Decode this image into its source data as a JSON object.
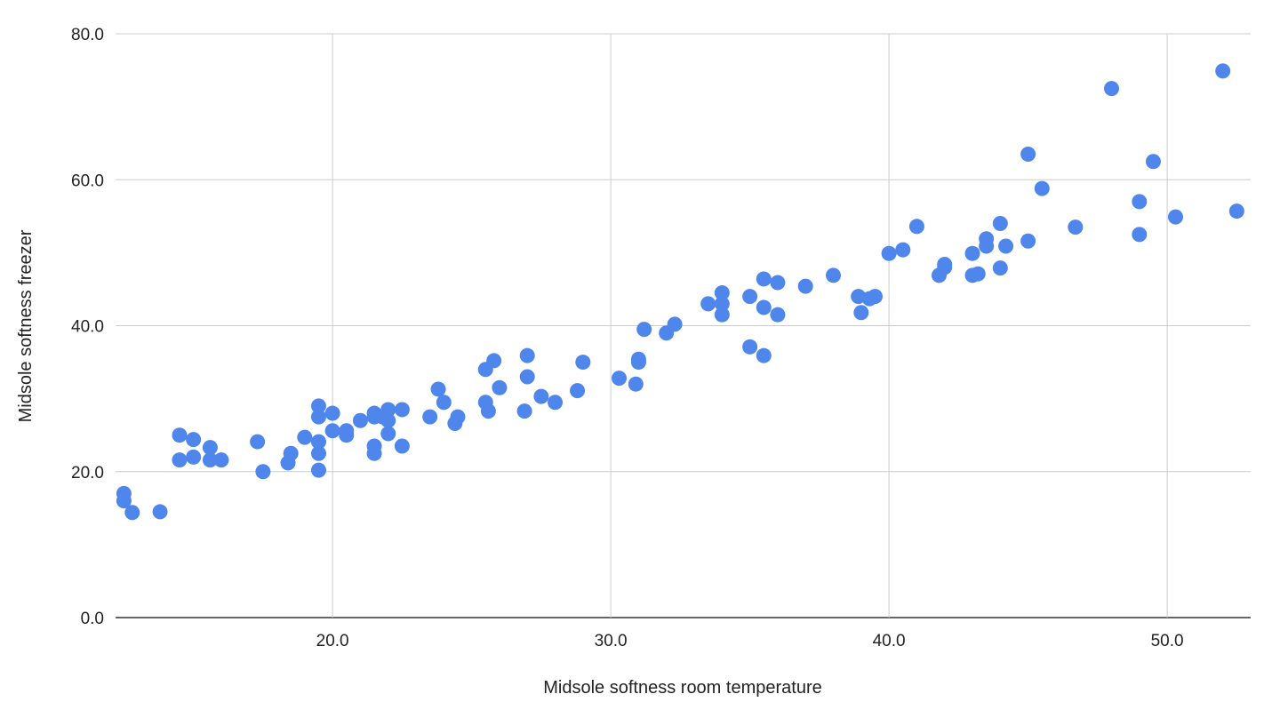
{
  "chart_data": {
    "type": "scatter",
    "title": "",
    "xlabel": "Midsole softness room temperature",
    "ylabel": "Midsole softness freezer",
    "xlim": [
      12.2,
      53.0
    ],
    "ylim": [
      0,
      80
    ],
    "xticks": [
      "20.0",
      "30.0",
      "40.0",
      "50.0"
    ],
    "xtick_values": [
      20,
      30,
      40,
      50
    ],
    "yticks": [
      "0.0",
      "20.0",
      "40.0",
      "60.0",
      "80.0"
    ],
    "ytick_values": [
      0,
      20,
      40,
      60,
      80
    ],
    "grid": true,
    "legend": "none",
    "color": "#4e86ec",
    "points": [
      [
        12.5,
        17.0
      ],
      [
        12.5,
        16.0
      ],
      [
        12.8,
        14.4
      ],
      [
        13.8,
        14.5
      ],
      [
        14.5,
        25.0
      ],
      [
        14.5,
        21.6
      ],
      [
        15.0,
        24.4
      ],
      [
        15.0,
        22.0
      ],
      [
        15.6,
        23.3
      ],
      [
        15.6,
        21.6
      ],
      [
        16.0,
        21.6
      ],
      [
        17.3,
        24.1
      ],
      [
        17.5,
        20.0
      ],
      [
        18.4,
        21.2
      ],
      [
        18.5,
        22.5
      ],
      [
        19.0,
        24.7
      ],
      [
        19.5,
        29.0
      ],
      [
        19.5,
        27.5
      ],
      [
        19.5,
        24.1
      ],
      [
        19.5,
        22.5
      ],
      [
        19.5,
        20.2
      ],
      [
        20.0,
        28.0
      ],
      [
        20.0,
        25.6
      ],
      [
        20.5,
        25.6
      ],
      [
        20.5,
        25.0
      ],
      [
        21.0,
        27.0
      ],
      [
        21.5,
        28.0
      ],
      [
        21.5,
        27.5
      ],
      [
        21.5,
        23.5
      ],
      [
        21.5,
        22.5
      ],
      [
        21.8,
        27.5
      ],
      [
        22.0,
        28.5
      ],
      [
        22.0,
        27.0
      ],
      [
        22.0,
        25.2
      ],
      [
        22.5,
        28.5
      ],
      [
        22.5,
        23.5
      ],
      [
        23.5,
        27.5
      ],
      [
        23.8,
        31.3
      ],
      [
        24.0,
        29.5
      ],
      [
        24.4,
        26.6
      ],
      [
        24.5,
        27.5
      ],
      [
        25.5,
        34.0
      ],
      [
        25.8,
        35.2
      ],
      [
        25.5,
        29.5
      ],
      [
        25.6,
        28.3
      ],
      [
        26.0,
        31.5
      ],
      [
        26.9,
        28.3
      ],
      [
        27.0,
        35.9
      ],
      [
        27.0,
        33.0
      ],
      [
        27.5,
        30.3
      ],
      [
        28.0,
        29.5
      ],
      [
        28.8,
        31.1
      ],
      [
        29.0,
        35.0
      ],
      [
        30.3,
        32.8
      ],
      [
        30.9,
        32.0
      ],
      [
        31.0,
        35.4
      ],
      [
        31.0,
        35.0
      ],
      [
        31.2,
        39.5
      ],
      [
        32.0,
        39.0
      ],
      [
        32.3,
        40.2
      ],
      [
        33.5,
        43.0
      ],
      [
        34.0,
        44.5
      ],
      [
        34.0,
        43.0
      ],
      [
        34.0,
        41.5
      ],
      [
        35.0,
        44.0
      ],
      [
        35.0,
        37.1
      ],
      [
        35.5,
        46.4
      ],
      [
        35.5,
        42.5
      ],
      [
        35.5,
        35.9
      ],
      [
        36.0,
        45.9
      ],
      [
        36.0,
        41.5
      ],
      [
        37.0,
        45.4
      ],
      [
        38.0,
        46.9
      ],
      [
        38.9,
        44.0
      ],
      [
        39.0,
        41.8
      ],
      [
        39.3,
        43.7
      ],
      [
        39.5,
        44.0
      ],
      [
        40.0,
        49.9
      ],
      [
        40.5,
        50.4
      ],
      [
        41.0,
        53.6
      ],
      [
        41.8,
        46.9
      ],
      [
        42.0,
        48.0
      ],
      [
        42.0,
        48.4
      ],
      [
        43.0,
        49.9
      ],
      [
        43.0,
        46.9
      ],
      [
        43.2,
        47.1
      ],
      [
        43.5,
        51.9
      ],
      [
        43.5,
        50.9
      ],
      [
        44.0,
        54.0
      ],
      [
        44.0,
        47.9
      ],
      [
        44.2,
        50.9
      ],
      [
        45.0,
        63.5
      ],
      [
        45.0,
        51.6
      ],
      [
        45.5,
        58.8
      ],
      [
        46.7,
        53.5
      ],
      [
        48.0,
        72.5
      ],
      [
        49.0,
        57.0
      ],
      [
        49.0,
        52.5
      ],
      [
        49.5,
        62.5
      ],
      [
        50.3,
        54.9
      ],
      [
        52.0,
        74.9
      ],
      [
        52.5,
        55.7
      ]
    ]
  }
}
